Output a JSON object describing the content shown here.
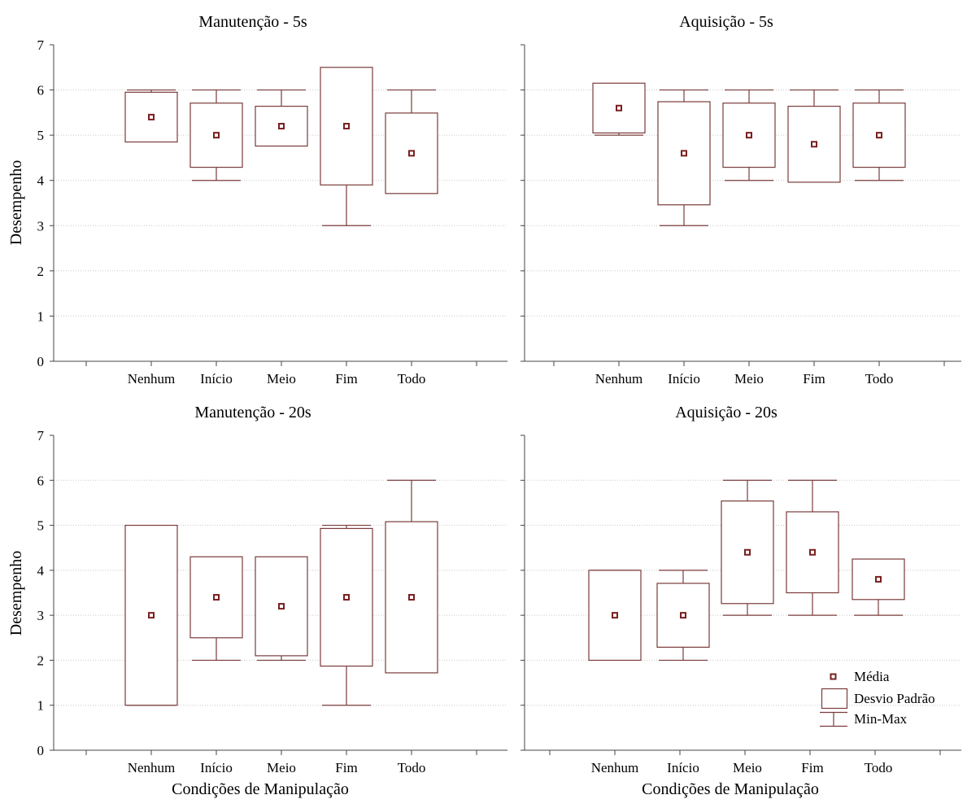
{
  "colors": {
    "box": "#7a3b3b",
    "mean": "#7a1f1f",
    "axis": "#444444",
    "grid": "#c8c8c8",
    "background": "#ffffff"
  },
  "y_label": "Desempenho",
  "x_label": "Condições de Manipulação",
  "legend": {
    "mean": "Média",
    "sd": "Desvio Padrão",
    "minmax": "Min-Max",
    "placement": "bottom-right"
  },
  "chart_data": [
    {
      "type": "box",
      "title": "Manutenção - 5s",
      "ylabel": "Desempenho",
      "xlabel": "",
      "ylim": [
        0,
        7
      ],
      "yticks": [
        "0",
        "1",
        "2",
        "3",
        "4",
        "5",
        "6",
        "7"
      ],
      "grid": true,
      "categories": [
        "Nenhum",
        "Início",
        "Meio",
        "Fim",
        "Todo"
      ],
      "mean": [
        5.4,
        5.0,
        5.2,
        5.2,
        4.6
      ],
      "sd_low": [
        4.85,
        4.29,
        4.76,
        3.9,
        3.71
      ],
      "sd_high": [
        5.95,
        5.71,
        5.64,
        6.5,
        5.49
      ],
      "min": [
        5,
        4,
        5,
        3,
        4
      ],
      "max": [
        6,
        6,
        6,
        6,
        6
      ]
    },
    {
      "type": "box",
      "title": "Aquisição - 5s",
      "ylabel": "",
      "xlabel": "",
      "ylim": [
        0,
        7
      ],
      "yticks": [],
      "grid": true,
      "categories": [
        "Nenhum",
        "Início",
        "Meio",
        "Fim",
        "Todo"
      ],
      "mean": [
        5.6,
        4.6,
        5.0,
        4.8,
        5.0
      ],
      "sd_low": [
        5.05,
        3.46,
        4.29,
        3.96,
        4.29
      ],
      "sd_high": [
        6.15,
        5.74,
        5.71,
        5.64,
        5.71
      ],
      "min": [
        5,
        3,
        4,
        4,
        4
      ],
      "max": [
        6,
        6,
        6,
        6,
        6
      ]
    },
    {
      "type": "box",
      "title": "Manutenção - 20s",
      "ylabel": "Desempenho",
      "xlabel": "Condições de Manipulação",
      "ylim": [
        0,
        7
      ],
      "yticks": [
        "0",
        "1",
        "2",
        "3",
        "4",
        "5",
        "6",
        "7"
      ],
      "grid": true,
      "categories": [
        "Nenhum",
        "Início",
        "Meio",
        "Fim",
        "Todo"
      ],
      "mean": [
        3.0,
        3.4,
        3.2,
        3.4,
        3.4
      ],
      "sd_low": [
        1.0,
        2.5,
        2.1,
        1.87,
        1.72
      ],
      "sd_high": [
        5.0,
        4.3,
        4.3,
        4.93,
        5.08
      ],
      "min": [
        1,
        2,
        2,
        1,
        2
      ],
      "max": [
        5,
        4,
        4,
        5,
        6
      ]
    },
    {
      "type": "box",
      "title": "Aquisição - 20s",
      "ylabel": "",
      "xlabel": "Condições de Manipulação",
      "ylim": [
        0,
        7
      ],
      "yticks": [],
      "grid": true,
      "categories": [
        "Nenhum",
        "Início",
        "Meio",
        "Fim",
        "Todo"
      ],
      "mean": [
        3.0,
        3.0,
        4.4,
        4.4,
        3.8
      ],
      "sd_low": [
        2.0,
        2.29,
        3.26,
        3.5,
        3.35
      ],
      "sd_high": [
        4.0,
        3.71,
        5.54,
        5.3,
        4.25
      ],
      "min": [
        2,
        2,
        3,
        3,
        3
      ],
      "max": [
        4,
        4,
        6,
        6,
        4
      ]
    }
  ]
}
